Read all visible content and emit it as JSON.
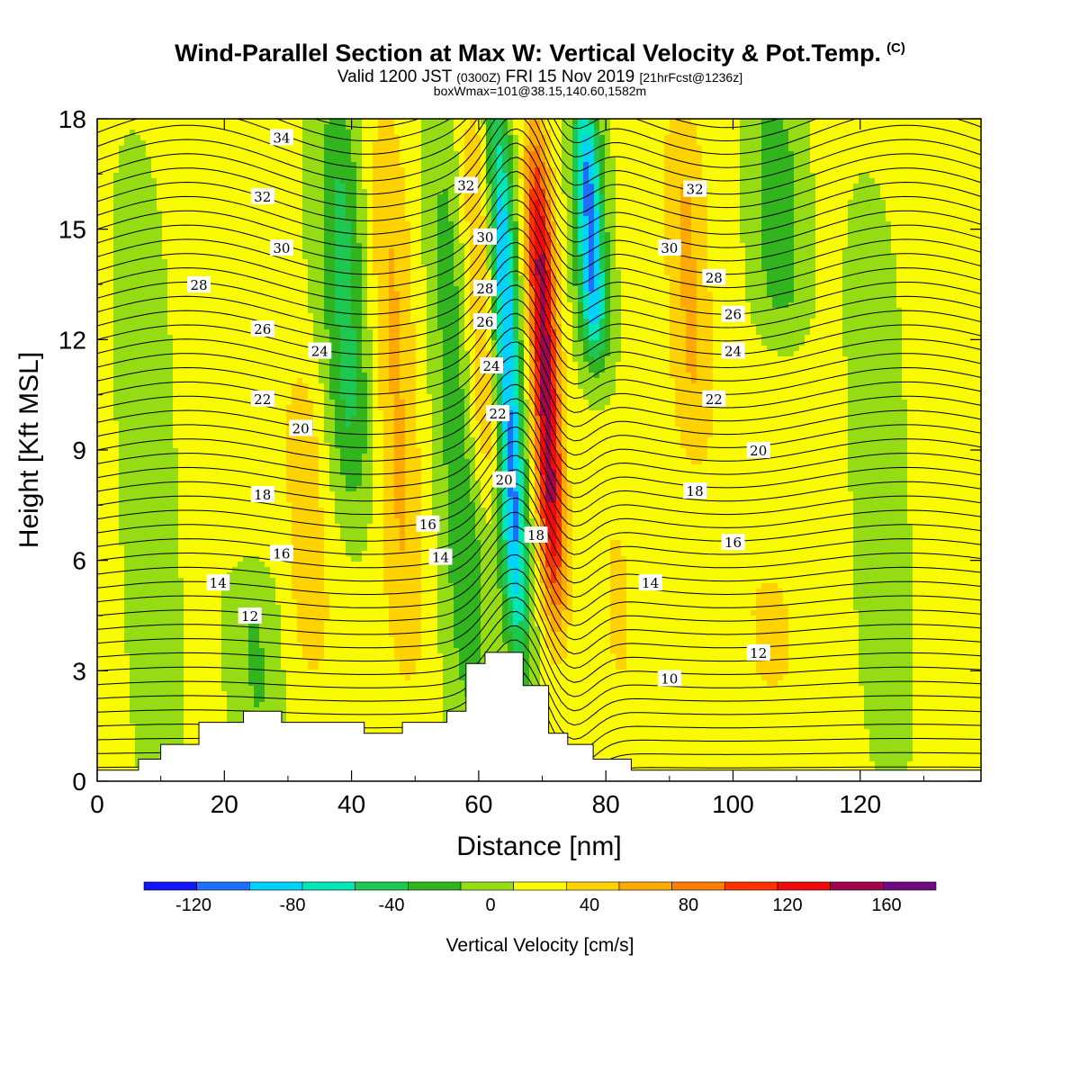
{
  "header": {
    "title": "Wind-Parallel Section at Max W: Vertical Velocity & Pot.Temp.",
    "copyright_mark": "(C)",
    "subtitle_valid": "Valid 1200 JST",
    "subtitle_z": "(0300Z)",
    "subtitle_date": "FRI 15 Nov 2019",
    "subtitle_fcst": "[21hrFcst@1236z]",
    "subtitle_box": "boxWmax=101@38.15,140.60,1582m"
  },
  "colors": {
    "levels": [
      "#1414ff",
      "#1e6eff",
      "#00d2ff",
      "#00e6b4",
      "#1ec850",
      "#32b41e",
      "#96dc14",
      "#fafa00",
      "#ffd200",
      "#ffaa00",
      "#ff7d00",
      "#ff3200",
      "#f00a0a",
      "#a0064b",
      "#6e0a82"
    ],
    "contour": "#000000",
    "terrain": "#ffffff"
  },
  "chart_data": {
    "type": "heatmap",
    "xlabel": "Distance [nm]",
    "ylabel": "Height [Kft MSL]",
    "xlim": [
      0,
      139
    ],
    "ylim": [
      0,
      18
    ],
    "x_ticks": [
      "0",
      "20",
      "40",
      "60",
      "80",
      "100",
      "120"
    ],
    "y_ticks": [
      "0",
      "3",
      "6",
      "9",
      "12",
      "15",
      "18"
    ],
    "field": "Vertical Velocity",
    "colorbar_label": "Vertical Velocity [cm/s]",
    "colorbar_bounds": [
      -140,
      -120,
      -100,
      -80,
      -60,
      -40,
      -20,
      0,
      20,
      40,
      60,
      80,
      100,
      120,
      140,
      160,
      180
    ],
    "colorbar_ticks": [
      "-120",
      "-80",
      "-40",
      "0",
      "40",
      "80",
      "120",
      "160"
    ],
    "velocity_features": [
      {
        "x": 64.5,
        "z_range": [
          4,
          18
        ],
        "w": -120
      },
      {
        "x": 70.5,
        "z_range": [
          5,
          17
        ],
        "w": 130
      },
      {
        "x": 77.5,
        "z_range": [
          12,
          18
        ],
        "w": -110
      },
      {
        "x": 57,
        "z_range": [
          1.5,
          18
        ],
        "w": -40
      },
      {
        "x": 60.5,
        "z_range": [
          8,
          18
        ],
        "w": 50
      },
      {
        "x": 47,
        "z_range": [
          3,
          18
        ],
        "w": 40
      },
      {
        "x": 39,
        "z_range": [
          8,
          18
        ],
        "w": -50
      },
      {
        "x": 33,
        "z_range": [
          3,
          11
        ],
        "w": 30
      },
      {
        "x": 93,
        "z_range": [
          9,
          18
        ],
        "w": 40
      },
      {
        "x": 107,
        "z_range": [
          13,
          18
        ],
        "w": -40
      },
      {
        "x": 106,
        "z_range": [
          3,
          5
        ],
        "w": 30
      },
      {
        "x": 82,
        "z_range": [
          2.5,
          7
        ],
        "w": 20
      },
      {
        "x": 123,
        "z_range": [
          1,
          15
        ],
        "w": -15
      },
      {
        "x": 8,
        "z_range": [
          0,
          16
        ],
        "w": -15
      },
      {
        "x": 25,
        "z_range": [
          1.5,
          5
        ],
        "w": -25
      }
    ],
    "terrain_profile": {
      "x": [
        0,
        6.5,
        6.5,
        10,
        10,
        16,
        16,
        23,
        23,
        29,
        29,
        42,
        42,
        48,
        48,
        55,
        55,
        58,
        58,
        61,
        61,
        67,
        67,
        71,
        71,
        74,
        74,
        78,
        78,
        84,
        84,
        139
      ],
      "z": [
        0.3,
        0.3,
        0.6,
        0.6,
        1.0,
        1.0,
        1.6,
        1.6,
        1.9,
        1.9,
        1.6,
        1.6,
        1.3,
        1.3,
        1.6,
        1.6,
        1.9,
        1.9,
        3.2,
        3.2,
        3.5,
        3.5,
        2.6,
        2.6,
        1.3,
        1.3,
        1.0,
        1.0,
        0.6,
        0.6,
        0.3,
        0.3
      ]
    },
    "theta_contour_labels": [
      {
        "text": "34",
        "x": 29,
        "z": 17.5
      },
      {
        "text": "32",
        "x": 26,
        "z": 15.9
      },
      {
        "text": "30",
        "x": 29,
        "z": 14.5
      },
      {
        "text": "28",
        "x": 16,
        "z": 13.5
      },
      {
        "text": "26",
        "x": 26,
        "z": 12.3
      },
      {
        "text": "24",
        "x": 35,
        "z": 11.7
      },
      {
        "text": "22",
        "x": 26,
        "z": 10.4
      },
      {
        "text": "20",
        "x": 32,
        "z": 9.6
      },
      {
        "text": "18",
        "x": 26,
        "z": 7.8
      },
      {
        "text": "16",
        "x": 29,
        "z": 6.2
      },
      {
        "text": "14",
        "x": 19,
        "z": 5.4
      },
      {
        "text": "12",
        "x": 24,
        "z": 4.5
      },
      {
        "text": "32",
        "x": 58,
        "z": 16.2
      },
      {
        "text": "30",
        "x": 61,
        "z": 14.8
      },
      {
        "text": "28",
        "x": 61,
        "z": 13.4
      },
      {
        "text": "26",
        "x": 61,
        "z": 12.5
      },
      {
        "text": "24",
        "x": 62,
        "z": 11.3
      },
      {
        "text": "22",
        "x": 63,
        "z": 10.0
      },
      {
        "text": "20",
        "x": 64,
        "z": 8.2
      },
      {
        "text": "18",
        "x": 69,
        "z": 6.7
      },
      {
        "text": "16",
        "x": 52,
        "z": 7.0
      },
      {
        "text": "14",
        "x": 54,
        "z": 6.1
      },
      {
        "text": "32",
        "x": 94,
        "z": 16.1
      },
      {
        "text": "30",
        "x": 90,
        "z": 14.5
      },
      {
        "text": "28",
        "x": 97,
        "z": 13.7
      },
      {
        "text": "26",
        "x": 100,
        "z": 12.7
      },
      {
        "text": "24",
        "x": 100,
        "z": 11.7
      },
      {
        "text": "22",
        "x": 97,
        "z": 10.4
      },
      {
        "text": "20",
        "x": 104,
        "z": 9.0
      },
      {
        "text": "18",
        "x": 94,
        "z": 7.9
      },
      {
        "text": "16",
        "x": 100,
        "z": 6.5
      },
      {
        "text": "14",
        "x": 87,
        "z": 5.4
      },
      {
        "text": "12",
        "x": 104,
        "z": 3.5
      },
      {
        "text": "10",
        "x": 90,
        "z": 2.8
      }
    ]
  }
}
